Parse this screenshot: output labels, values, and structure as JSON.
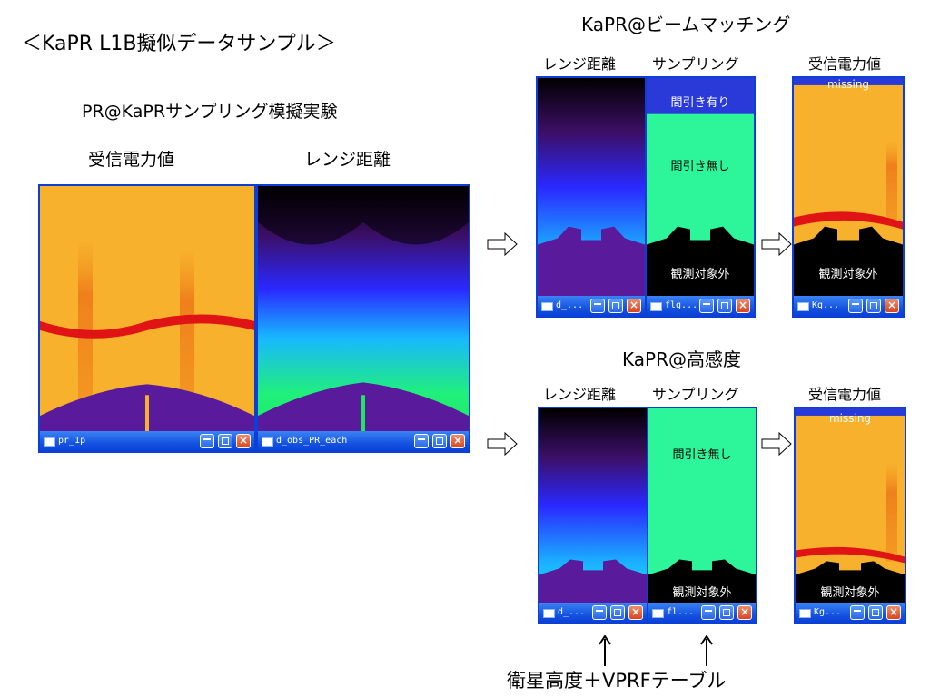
{
  "title": "＜KaPR L1B擬似データサンプル＞",
  "left_section": {
    "title": "PR@KaPRサンプリング模擬実験",
    "labels": [
      "受信電力値",
      "レンジ距離"
    ],
    "windows": [
      {
        "title": "pr_1p"
      },
      {
        "title": "d_obs_PR_each"
      }
    ]
  },
  "beam_section": {
    "title": "KaPR@ビームマッチング",
    "labels": [
      "レンジ距離",
      "サンプリング",
      "受信電力値"
    ],
    "windows": [
      {
        "title": "d_..."
      },
      {
        "title": "flg..."
      },
      {
        "title": "Kg..."
      }
    ],
    "overlays": {
      "thinned": "間引き有り",
      "not_thinned": "間引き無し",
      "out_of_obs": "観測対象外",
      "missing": "missing"
    }
  },
  "high_section": {
    "title": "KaPR@高感度",
    "labels": [
      "レンジ距離",
      "サンプリング",
      "受信電力値"
    ],
    "windows": [
      {
        "title": "d_..."
      },
      {
        "title": "fl..."
      },
      {
        "title": "Kg..."
      }
    ],
    "overlays": {
      "not_thinned": "間引き無し",
      "out_of_obs": "観測対象外",
      "missing": "missing"
    }
  },
  "bottom_label": "衛星高度＋VPRFテーブル",
  "colors": {
    "window_frame": "#0b3fd6",
    "power_bg": "#f7b12c",
    "surface_purple": "#5a1a9c",
    "clutter_red": "#e01414",
    "sampling_green": "#2df59a"
  },
  "icons": [
    "open-arrow-icon",
    "up-arrow-icon",
    "window-icon",
    "minimize-icon",
    "maximize-icon",
    "close-icon"
  ]
}
